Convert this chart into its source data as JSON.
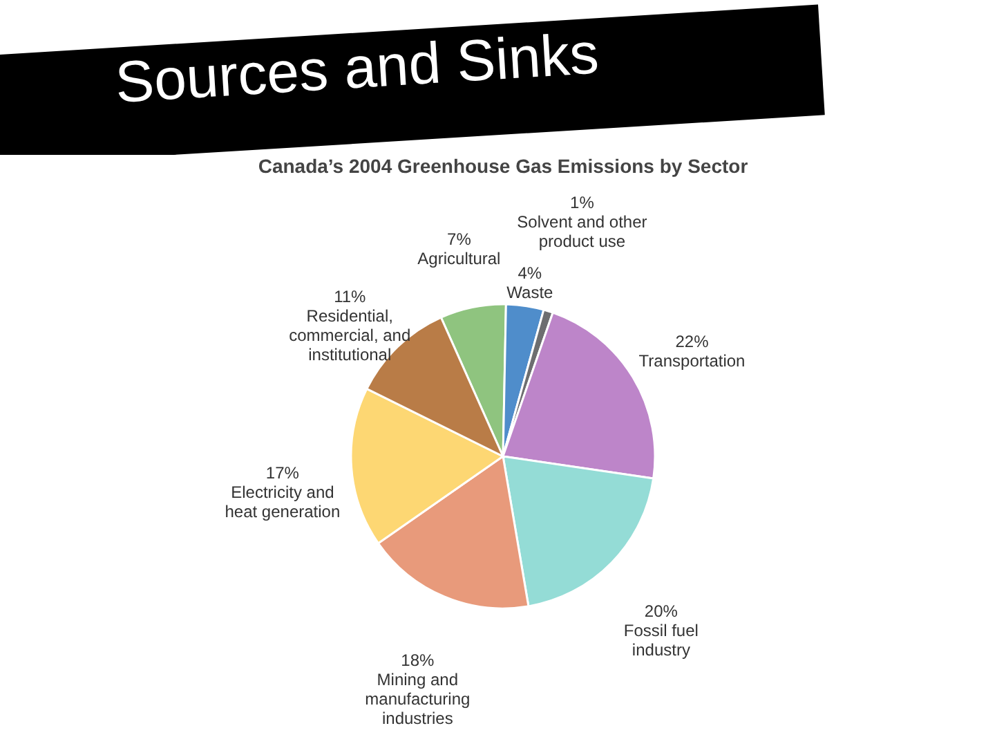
{
  "chart_data": {
    "type": "pie",
    "title": "Sources and Sinks",
    "subtitle": "Canada’s 2004 Greenhouse Gas Emissions by Sector",
    "categories": [
      "Agricultural",
      "Waste",
      "Solvent and other product use",
      "Transportation",
      "Fossil fuel industry",
      "Mining and manufacturing industries",
      "Electricity and heat generation",
      "Residential, commercial, and institutional"
    ],
    "values": [
      7,
      4,
      1,
      22,
      20,
      18,
      17,
      11
    ],
    "value_labels": [
      "7%",
      "4%",
      "1%",
      "22%",
      "20%",
      "18%",
      "17%",
      "11%"
    ],
    "colors": [
      "#8fc47f",
      "#4f8dcb",
      "#6d6e70",
      "#bd85c9",
      "#94dcd6",
      "#e89a7b",
      "#fdd773",
      "#b97c47"
    ],
    "legend": false
  }
}
